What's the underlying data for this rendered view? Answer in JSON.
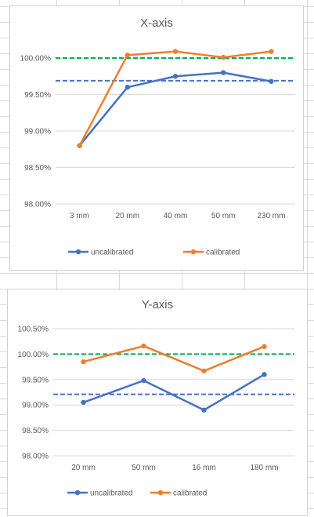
{
  "chart_data": [
    {
      "type": "line",
      "title": "X-axis",
      "categories": [
        "3 mm",
        "20 mm",
        "40 mm",
        "50 mm",
        "230 mm"
      ],
      "series": [
        {
          "name": "uncalibrated",
          "color": "#4472c4",
          "values": [
            98.8,
            99.6,
            99.75,
            99.8,
            99.68
          ]
        },
        {
          "name": "calibrated",
          "color": "#ed7d31",
          "values": [
            98.8,
            100.04,
            100.09,
            100.01,
            100.09
          ]
        }
      ],
      "reference_lines": [
        {
          "value": 100.0,
          "color": "#00b050",
          "style": "dashed"
        },
        {
          "value": 99.69,
          "color": "#4472c4",
          "style": "dashed"
        }
      ],
      "ylim": [
        98.0,
        100.0
      ],
      "yticks": [
        98.0,
        98.5,
        99.0,
        99.5,
        100.0
      ],
      "ytick_labels": [
        "98.00%",
        "98.50%",
        "99.00%",
        "99.50%",
        "100.00%"
      ],
      "grid": true,
      "legend_position": "bottom"
    },
    {
      "type": "line",
      "title": "Y-axis",
      "categories": [
        "20 mm",
        "50 mm",
        "16 mm",
        "180 mm"
      ],
      "series": [
        {
          "name": "uncalibrated",
          "color": "#4472c4",
          "values": [
            99.05,
            99.48,
            98.9,
            99.6
          ]
        },
        {
          "name": "calibrated",
          "color": "#ed7d31",
          "values": [
            99.85,
            100.16,
            99.67,
            100.15
          ]
        }
      ],
      "reference_lines": [
        {
          "value": 100.0,
          "color": "#00b050",
          "style": "dashed"
        },
        {
          "value": 99.21,
          "color": "#4472c4",
          "style": "dashed"
        }
      ],
      "ylim": [
        98.0,
        100.5
      ],
      "yticks": [
        98.0,
        98.5,
        99.0,
        99.5,
        100.0,
        100.5
      ],
      "ytick_labels": [
        "98.00%",
        "98.50%",
        "99.00%",
        "99.50%",
        "100.00%",
        "100.50%"
      ],
      "grid": true,
      "legend_position": "bottom"
    }
  ]
}
